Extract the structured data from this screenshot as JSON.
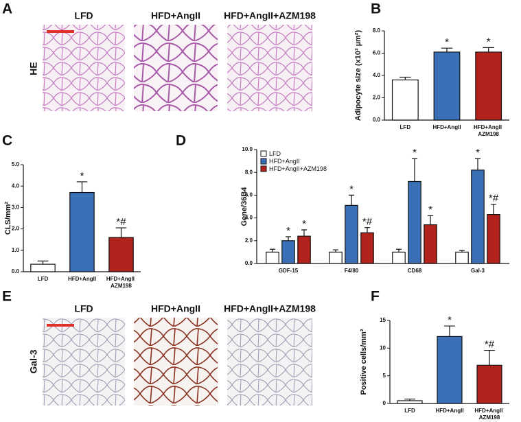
{
  "panel_labels": [
    "A",
    "B",
    "C",
    "D",
    "E",
    "F"
  ],
  "image_panels": [
    {
      "row_label": "HE",
      "columns": [
        "LFD",
        "HFD+AngII",
        "HFD+AngII+AZM198"
      ]
    },
    {
      "row_label": "Gal-3",
      "columns": [
        "LFD",
        "HFD+AngII",
        "HFD+AngII+AZM198"
      ]
    }
  ],
  "chart_data": [
    {
      "type": "bar",
      "ylabel": "Adipocyte size (x10³ µm²)",
      "categories": [
        "LFD",
        "HFD+AngII",
        "HFD+AngII AZM198"
      ],
      "values": [
        3.6,
        6.1,
        6.1
      ],
      "errors": [
        0.25,
        0.35,
        0.4
      ],
      "annotations": [
        null,
        "*",
        "*"
      ],
      "colors": [
        "#ffffff",
        "#3b6fb6",
        "#b3231e"
      ],
      "ylim": [
        0,
        8
      ],
      "yticks": [
        {
          "value": 0,
          "label": "0.0"
        },
        {
          "value": 2,
          "label": "2.0"
        },
        {
          "value": 4,
          "label": "4.0"
        },
        {
          "value": 6,
          "label": "6.0"
        },
        {
          "value": 8,
          "label": "8.0"
        }
      ]
    },
    {
      "type": "bar",
      "ylabel": "CLS/mm²",
      "categories": [
        "LFD",
        "HFD+AngII",
        "HFD+AngII AZM198"
      ],
      "values": [
        0.35,
        3.7,
        1.6
      ],
      "errors": [
        0.15,
        0.5,
        0.45
      ],
      "annotations": [
        null,
        "*",
        "*#"
      ],
      "colors": [
        "#ffffff",
        "#3b6fb6",
        "#b3231e"
      ],
      "ylim": [
        0,
        5
      ],
      "yticks": [
        {
          "value": 0,
          "label": "0.0"
        },
        {
          "value": 1,
          "label": "1.0"
        },
        {
          "value": 2,
          "label": "2.0"
        },
        {
          "value": 3,
          "label": "3.0"
        },
        {
          "value": 4,
          "label": "4.0"
        },
        {
          "value": 5,
          "label": "5.0"
        }
      ]
    },
    {
      "type": "grouped-bar",
      "ylabel": "Gene/36B4",
      "categories": [
        "GDF-15",
        "F4/80",
        "CD68",
        "Gal-3"
      ],
      "series": [
        {
          "name": "LFD",
          "color": "#ffffff",
          "values": [
            1.0,
            1.0,
            1.0,
            1.0
          ],
          "errors": [
            0.25,
            0.2,
            0.25,
            0.15
          ],
          "annotations": [
            null,
            null,
            null,
            null
          ]
        },
        {
          "name": "HFD+AngII",
          "color": "#3b6fb6",
          "values": [
            2.0,
            5.1,
            7.2,
            8.2
          ],
          "errors": [
            0.35,
            0.9,
            2.0,
            1.0
          ],
          "annotations": [
            "*",
            "*",
            "*",
            "*"
          ]
        },
        {
          "name": "HFD+AngII+AZM198",
          "color": "#b3231e",
          "values": [
            2.4,
            2.7,
            3.4,
            4.3
          ],
          "errors": [
            0.55,
            0.45,
            0.8,
            0.9
          ],
          "annotations": [
            "*",
            "*#",
            "*",
            "*#"
          ]
        }
      ],
      "legend": "top-left",
      "ylim": [
        0,
        10
      ],
      "yticks": [
        {
          "value": 0,
          "label": "0.0"
        },
        {
          "value": 2,
          "label": "2.0"
        },
        {
          "value": 4,
          "label": "4.0"
        },
        {
          "value": 6,
          "label": "6.0"
        },
        {
          "value": 8,
          "label": "8.0"
        },
        {
          "value": 10,
          "label": "10.0"
        }
      ]
    },
    {
      "type": "bar",
      "ylabel": "Positive cells/mm²",
      "categories": [
        "LFD",
        "HFD+AngII",
        "HFD+AngII AZM198"
      ],
      "values": [
        0.5,
        12.1,
        6.9
      ],
      "errors": [
        0.3,
        1.9,
        2.7
      ],
      "annotations": [
        null,
        "*",
        "*#"
      ],
      "colors": [
        "#ffffff",
        "#3b6fb6",
        "#b3231e"
      ],
      "ylim": [
        0,
        15
      ],
      "yticks": [
        0,
        5,
        10,
        15
      ]
    }
  ]
}
